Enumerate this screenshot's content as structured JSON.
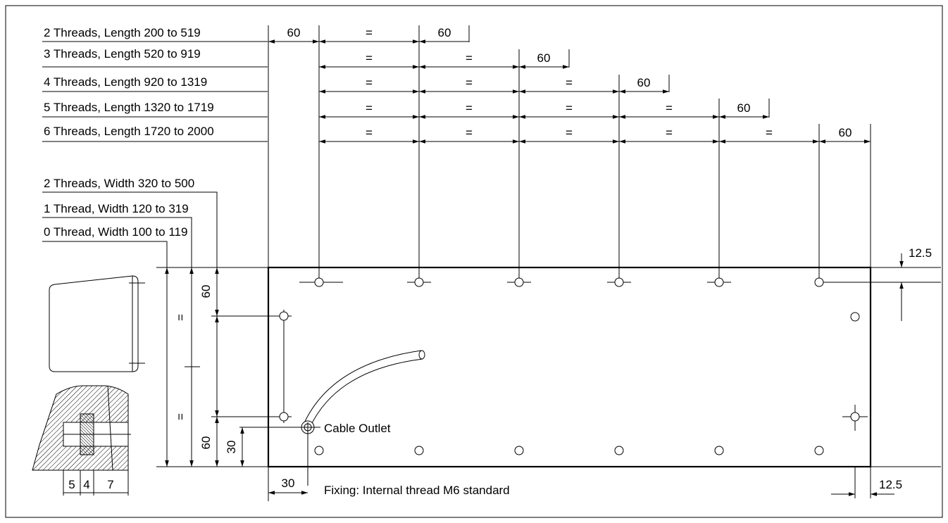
{
  "length_rows": [
    {
      "label": "2 Threads, Length 200 to 519",
      "segments": [
        "=",
        "60"
      ]
    },
    {
      "label": "3 Threads, Length 520 to 919",
      "segments": [
        "=",
        "=",
        "60"
      ]
    },
    {
      "label": "4 Threads, Length 920 to 1319",
      "segments": [
        "=",
        "=",
        "=",
        "60"
      ]
    },
    {
      "label": "5 Threads, Length 1320 to 1719",
      "segments": [
        "=",
        "=",
        "=",
        "=",
        "60"
      ]
    },
    {
      "label": "6 Threads, Length 1720 to 2000",
      "segments": [
        "=",
        "=",
        "=",
        "=",
        "=",
        "60"
      ]
    }
  ],
  "edge_offset_label": "60",
  "width_rows": [
    {
      "label": "2 Threads, Width 320 to 500"
    },
    {
      "label": "1 Thread, Width 120 to 319"
    },
    {
      "label": "0 Thread, Width 100 to 119"
    }
  ],
  "vertical_dims": {
    "top_60": "60",
    "bottom_60": "60",
    "equal_upper": "=",
    "equal_lower": "=",
    "cable_30": "30"
  },
  "right_dims": {
    "top_12_5": "12.5",
    "bottom_12_5": "12.5"
  },
  "bottom_dims": {
    "left_30": "30"
  },
  "cable_outlet_label": "Cable Outlet",
  "fixing_note": "Fixing: Internal thread M6 standard",
  "section_dims": [
    "5",
    "4",
    "7"
  ]
}
